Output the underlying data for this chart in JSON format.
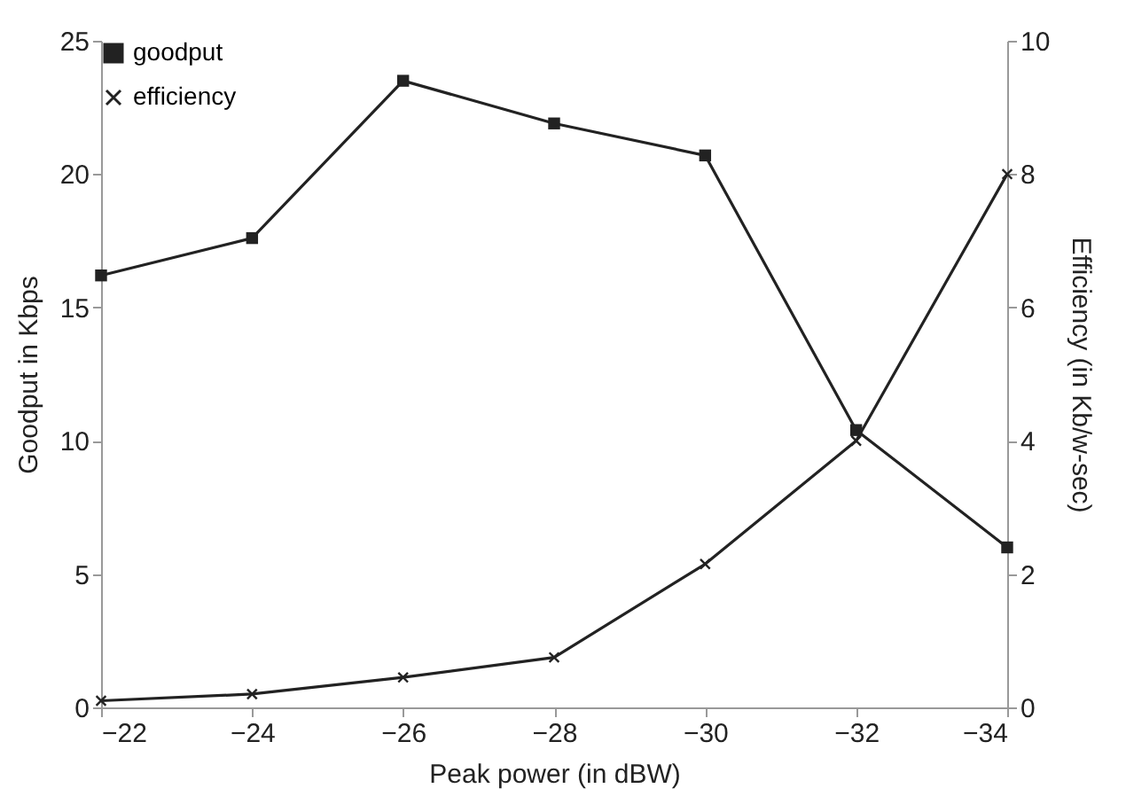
{
  "chart_data": {
    "type": "line",
    "xlabel": "Peak  power (in dBW)",
    "ylabel": "Goodput in Kbps",
    "y2label": "Efficiency (in Kb/w-sec)",
    "x": [
      -22,
      -24,
      -26,
      -28,
      -30,
      -32,
      -34
    ],
    "xlim": [
      -22,
      -34
    ],
    "xticks": [
      -22,
      -24,
      -26,
      -28,
      -30,
      -32,
      -34
    ],
    "ylim": [
      0,
      25
    ],
    "yticks": [
      0,
      5,
      10,
      15,
      20,
      25
    ],
    "y2lim": [
      0,
      10
    ],
    "y2ticks": [
      0,
      2,
      4,
      6,
      8,
      10
    ],
    "series": [
      {
        "name": "goodput",
        "color": "#222222",
        "marker": "square",
        "values": [
          16.2,
          17.6,
          23.5,
          21.9,
          20.7,
          10.4,
          6.0
        ]
      },
      {
        "name": "efficiency",
        "color": "#222222",
        "marker": "cross",
        "axis": "y2",
        "values": [
          0.1,
          0.2,
          0.45,
          0.75,
          2.15,
          4.0,
          8.0
        ]
      }
    ],
    "grid": false,
    "legend": "top left",
    "line_style": "solid"
  }
}
